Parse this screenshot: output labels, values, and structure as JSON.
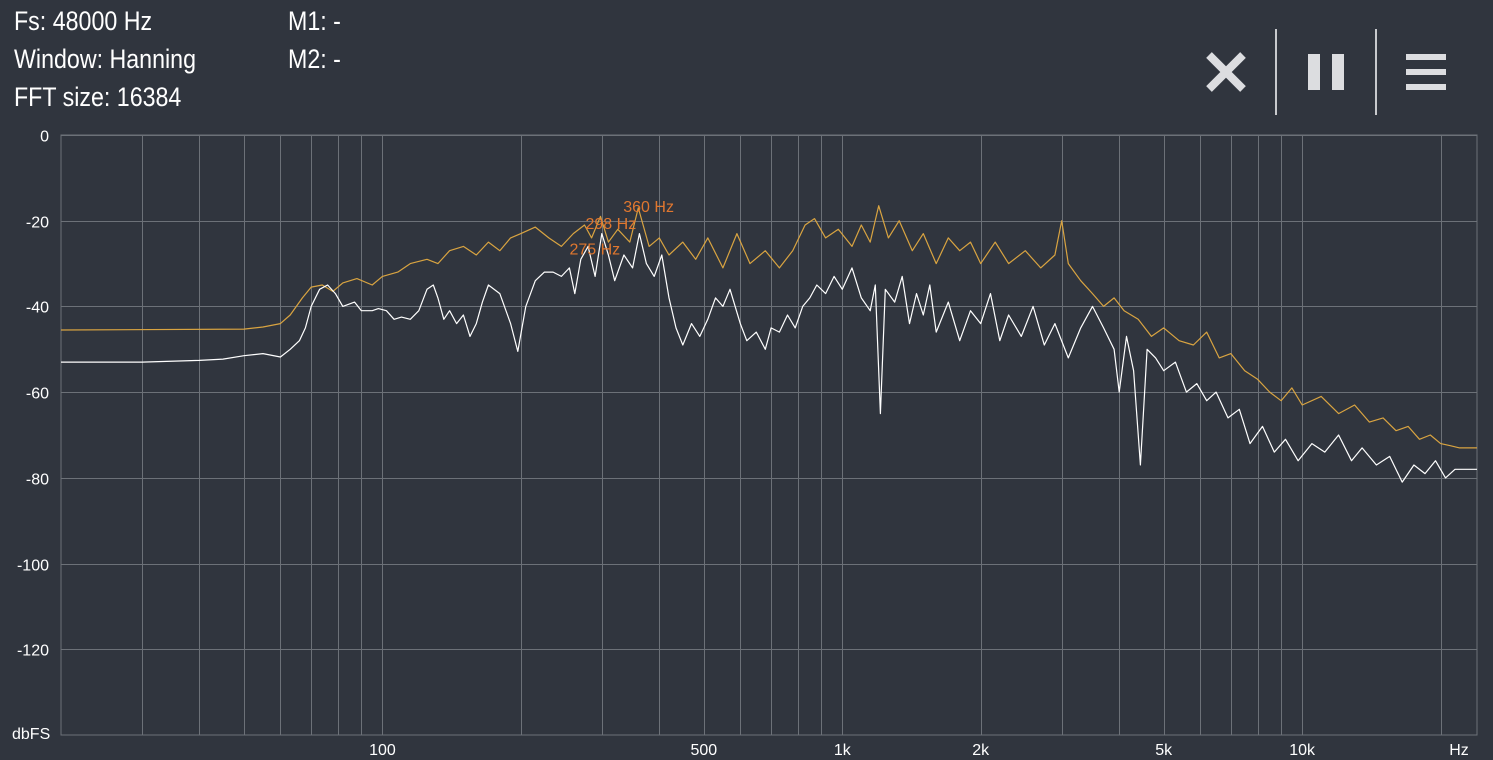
{
  "info": {
    "fs": "Fs: 48000 Hz",
    "window": "Window: Hanning",
    "fft": "FFT size: 16384",
    "m1": "M1: -",
    "m2": "M2: -"
  },
  "toolbar": {
    "close_icon": "close-icon",
    "pause_icon": "pause-icon",
    "menu_icon": "menu-icon"
  },
  "colors": {
    "background": "#30353e",
    "grid": "#6c7178",
    "peak_hold": "#d9a441",
    "live": "#ffffff",
    "peak_label": "#e0772f"
  },
  "chart_data": {
    "type": "line",
    "x_scale": "log",
    "xlim": [
      20,
      24000
    ],
    "ylim": [
      -140,
      0
    ],
    "ylabel": "dbFS",
    "y_ticks": [
      0,
      -20,
      -40,
      -60,
      -80,
      -100,
      -120
    ],
    "y_tick_labels": [
      "0",
      "-20",
      "-40",
      "-60",
      "-80",
      "-100",
      "-120"
    ],
    "x_tick_labels": [
      {
        "x": 100,
        "label": "100"
      },
      {
        "x": 500,
        "label": "500"
      },
      {
        "x": 1000,
        "label": "1k"
      },
      {
        "x": 2000,
        "label": "2k"
      },
      {
        "x": 5000,
        "label": "5k"
      },
      {
        "x": 10000,
        "label": "10k"
      },
      {
        "x": 24000,
        "label": "Hz"
      }
    ],
    "grid_x": [
      30,
      40,
      50,
      60,
      70,
      80,
      90,
      100,
      200,
      300,
      400,
      500,
      600,
      700,
      800,
      900,
      1000,
      2000,
      3000,
      4000,
      5000,
      6000,
      7000,
      8000,
      9000,
      10000,
      20000
    ],
    "peak_labels": [
      {
        "x": 360,
        "y": -17,
        "label": "360 Hz"
      },
      {
        "x": 298,
        "y": -21,
        "label": "298 Hz"
      },
      {
        "x": 275,
        "y": -27,
        "label": "275 Hz"
      }
    ],
    "series": [
      {
        "role": "peak-hold",
        "color": "#d9a441",
        "points": [
          [
            20,
            -45.5
          ],
          [
            50,
            -45.3
          ],
          [
            55,
            -44.8
          ],
          [
            60,
            -44
          ],
          [
            63,
            -42
          ],
          [
            67,
            -38
          ],
          [
            70,
            -35.5
          ],
          [
            74,
            -35
          ],
          [
            78,
            -36.5
          ],
          [
            82,
            -34.5
          ],
          [
            88,
            -33.5
          ],
          [
            95,
            -35
          ],
          [
            100,
            -33
          ],
          [
            108,
            -32
          ],
          [
            115,
            -30
          ],
          [
            125,
            -29
          ],
          [
            132,
            -30
          ],
          [
            140,
            -27
          ],
          [
            150,
            -26
          ],
          [
            160,
            -28
          ],
          [
            170,
            -25
          ],
          [
            180,
            -27
          ],
          [
            190,
            -24
          ],
          [
            200,
            -23
          ],
          [
            215,
            -21.5
          ],
          [
            230,
            -24
          ],
          [
            245,
            -26
          ],
          [
            260,
            -23
          ],
          [
            275,
            -21
          ],
          [
            285,
            -24
          ],
          [
            298,
            -19
          ],
          [
            310,
            -25
          ],
          [
            325,
            -22
          ],
          [
            345,
            -25
          ],
          [
            360,
            -17
          ],
          [
            380,
            -26
          ],
          [
            400,
            -24
          ],
          [
            420,
            -28
          ],
          [
            450,
            -25
          ],
          [
            480,
            -29
          ],
          [
            510,
            -24
          ],
          [
            550,
            -31
          ],
          [
            590,
            -23
          ],
          [
            630,
            -30
          ],
          [
            680,
            -27
          ],
          [
            730,
            -31
          ],
          [
            780,
            -27
          ],
          [
            830,
            -21
          ],
          [
            870,
            -19.5
          ],
          [
            920,
            -24
          ],
          [
            980,
            -22
          ],
          [
            1050,
            -26
          ],
          [
            1100,
            -21
          ],
          [
            1150,
            -25
          ],
          [
            1200,
            -16.5
          ],
          [
            1260,
            -24
          ],
          [
            1330,
            -20
          ],
          [
            1420,
            -27
          ],
          [
            1500,
            -23
          ],
          [
            1600,
            -30
          ],
          [
            1700,
            -24
          ],
          [
            1800,
            -27
          ],
          [
            1900,
            -25
          ],
          [
            2000,
            -30
          ],
          [
            2150,
            -25
          ],
          [
            2300,
            -30
          ],
          [
            2500,
            -27
          ],
          [
            2700,
            -31
          ],
          [
            2900,
            -28
          ],
          [
            3000,
            -20
          ],
          [
            3100,
            -30
          ],
          [
            3300,
            -34
          ],
          [
            3500,
            -37
          ],
          [
            3700,
            -40
          ],
          [
            3900,
            -38
          ],
          [
            4100,
            -41
          ],
          [
            4400,
            -43
          ],
          [
            4700,
            -47
          ],
          [
            5000,
            -45
          ],
          [
            5400,
            -48
          ],
          [
            5800,
            -49
          ],
          [
            6200,
            -46
          ],
          [
            6600,
            -52
          ],
          [
            7000,
            -51
          ],
          [
            7500,
            -55
          ],
          [
            8000,
            -57
          ],
          [
            8500,
            -60
          ],
          [
            9000,
            -62
          ],
          [
            9500,
            -59
          ],
          [
            10000,
            -63
          ],
          [
            11000,
            -61
          ],
          [
            12000,
            -65
          ],
          [
            13000,
            -63
          ],
          [
            14000,
            -67
          ],
          [
            15000,
            -66
          ],
          [
            16000,
            -69
          ],
          [
            17000,
            -68
          ],
          [
            18000,
            -71
          ],
          [
            19000,
            -70
          ],
          [
            20000,
            -72
          ],
          [
            21000,
            -72.5
          ],
          [
            22000,
            -73
          ],
          [
            24000,
            -73
          ]
        ]
      },
      {
        "role": "live",
        "color": "#ffffff",
        "points": [
          [
            20,
            -53
          ],
          [
            30,
            -53
          ],
          [
            40,
            -52.6
          ],
          [
            45,
            -52.3
          ],
          [
            50,
            -51.5
          ],
          [
            55,
            -51
          ],
          [
            60,
            -51.8
          ],
          [
            63,
            -50
          ],
          [
            66,
            -48
          ],
          [
            68,
            -45
          ],
          [
            70,
            -40
          ],
          [
            73,
            -36
          ],
          [
            76,
            -35
          ],
          [
            79,
            -37
          ],
          [
            82,
            -40
          ],
          [
            87,
            -39
          ],
          [
            90,
            -41
          ],
          [
            95,
            -41
          ],
          [
            98,
            -40.5
          ],
          [
            102,
            -41
          ],
          [
            106,
            -43
          ],
          [
            110,
            -42.5
          ],
          [
            115,
            -43
          ],
          [
            120,
            -41
          ],
          [
            125,
            -36
          ],
          [
            129,
            -35
          ],
          [
            132,
            -38
          ],
          [
            136,
            -43
          ],
          [
            140,
            -41
          ],
          [
            145,
            -44
          ],
          [
            150,
            -42
          ],
          [
            155,
            -47
          ],
          [
            160,
            -44
          ],
          [
            165,
            -39
          ],
          [
            170,
            -35
          ],
          [
            180,
            -37
          ],
          [
            190,
            -44
          ],
          [
            197,
            -50.5
          ],
          [
            205,
            -40
          ],
          [
            215,
            -34
          ],
          [
            225,
            -32
          ],
          [
            235,
            -32
          ],
          [
            245,
            -33
          ],
          [
            255,
            -31
          ],
          [
            262,
            -37
          ],
          [
            270,
            -29
          ],
          [
            280,
            -26
          ],
          [
            290,
            -33
          ],
          [
            300,
            -23
          ],
          [
            310,
            -28
          ],
          [
            320,
            -34
          ],
          [
            335,
            -28
          ],
          [
            350,
            -31
          ],
          [
            362,
            -23
          ],
          [
            375,
            -30
          ],
          [
            390,
            -33
          ],
          [
            405,
            -28
          ],
          [
            420,
            -38
          ],
          [
            435,
            -45
          ],
          [
            450,
            -49
          ],
          [
            470,
            -44
          ],
          [
            490,
            -47
          ],
          [
            510,
            -43
          ],
          [
            530,
            -38
          ],
          [
            550,
            -40
          ],
          [
            570,
            -36
          ],
          [
            600,
            -44
          ],
          [
            620,
            -48
          ],
          [
            650,
            -46
          ],
          [
            680,
            -50
          ],
          [
            700,
            -45
          ],
          [
            730,
            -46
          ],
          [
            760,
            -42
          ],
          [
            790,
            -45
          ],
          [
            820,
            -40
          ],
          [
            850,
            -38
          ],
          [
            880,
            -35
          ],
          [
            920,
            -37
          ],
          [
            960,
            -33
          ],
          [
            1000,
            -36
          ],
          [
            1050,
            -31
          ],
          [
            1100,
            -38
          ],
          [
            1150,
            -41
          ],
          [
            1180,
            -35
          ],
          [
            1210,
            -65
          ],
          [
            1240,
            -36
          ],
          [
            1300,
            -39
          ],
          [
            1350,
            -33
          ],
          [
            1400,
            -44
          ],
          [
            1450,
            -37
          ],
          [
            1500,
            -42
          ],
          [
            1550,
            -35
          ],
          [
            1600,
            -46
          ],
          [
            1700,
            -39
          ],
          [
            1800,
            -48
          ],
          [
            1900,
            -41
          ],
          [
            2000,
            -44
          ],
          [
            2100,
            -37
          ],
          [
            2200,
            -48
          ],
          [
            2300,
            -42
          ],
          [
            2450,
            -47
          ],
          [
            2600,
            -40
          ],
          [
            2750,
            -49
          ],
          [
            2900,
            -44
          ],
          [
            3100,
            -52
          ],
          [
            3300,
            -45
          ],
          [
            3500,
            -40
          ],
          [
            3700,
            -45
          ],
          [
            3900,
            -50
          ],
          [
            4000,
            -60
          ],
          [
            4150,
            -47
          ],
          [
            4300,
            -55
          ],
          [
            4450,
            -77
          ],
          [
            4600,
            -50
          ],
          [
            4800,
            -52
          ],
          [
            5000,
            -55
          ],
          [
            5300,
            -53
          ],
          [
            5600,
            -60
          ],
          [
            5900,
            -58
          ],
          [
            6200,
            -62
          ],
          [
            6500,
            -60
          ],
          [
            6900,
            -66
          ],
          [
            7300,
            -64
          ],
          [
            7700,
            -72
          ],
          [
            8200,
            -68
          ],
          [
            8700,
            -74
          ],
          [
            9200,
            -71
          ],
          [
            9800,
            -76
          ],
          [
            10500,
            -72
          ],
          [
            11200,
            -74
          ],
          [
            12000,
            -70
          ],
          [
            12800,
            -76
          ],
          [
            13500,
            -73
          ],
          [
            14500,
            -77
          ],
          [
            15500,
            -75
          ],
          [
            16500,
            -81
          ],
          [
            17500,
            -77
          ],
          [
            18500,
            -79
          ],
          [
            19500,
            -76
          ],
          [
            20500,
            -80
          ],
          [
            21500,
            -78
          ],
          [
            22500,
            -78
          ],
          [
            24000,
            -78
          ]
        ]
      }
    ]
  }
}
